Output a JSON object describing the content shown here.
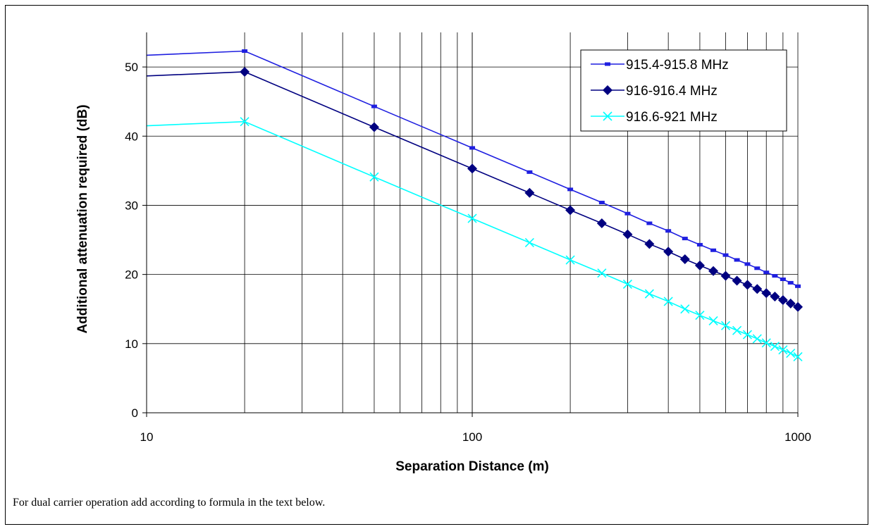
{
  "footnote": "For dual carrier operation add according to formula in the text below.",
  "chart_data": {
    "type": "line",
    "title": "",
    "xlabel": "Separation Distance (m)",
    "ylabel": "Additional attenuation required (dB)",
    "x_scale": "log",
    "xlim": [
      10,
      1000
    ],
    "ylim": [
      0,
      55
    ],
    "x_ticks": [
      10,
      100,
      1000
    ],
    "x_tick_labels": [
      "10",
      "100",
      "1000"
    ],
    "y_ticks": [
      0,
      10,
      20,
      30,
      40,
      50
    ],
    "y_tick_labels": [
      "0",
      "10",
      "20",
      "30",
      "40",
      "50"
    ],
    "grid": true,
    "legend_position": "top-right",
    "series": [
      {
        "name": "915.4-915.8 MHz",
        "color": "#1f1fe0",
        "marker": "dash",
        "x": [
          10,
          20,
          50,
          100,
          150,
          200,
          250,
          300,
          350,
          400,
          450,
          500,
          550,
          600,
          650,
          700,
          750,
          800,
          850,
          900,
          950,
          1000
        ],
        "y": [
          51.7,
          52.3,
          44.3,
          38.3,
          34.8,
          32.3,
          30.4,
          28.8,
          27.4,
          26.3,
          25.2,
          24.3,
          23.5,
          22.8,
          22.1,
          21.5,
          20.9,
          20.3,
          19.8,
          19.3,
          18.8,
          18.3
        ]
      },
      {
        "name": "916-916.4 MHz",
        "color": "#000080",
        "marker": "diamond",
        "x": [
          10,
          20,
          50,
          100,
          150,
          200,
          250,
          300,
          350,
          400,
          450,
          500,
          550,
          600,
          650,
          700,
          750,
          800,
          850,
          900,
          950,
          1000
        ],
        "y": [
          48.7,
          49.3,
          41.3,
          35.3,
          31.8,
          29.3,
          27.4,
          25.8,
          24.4,
          23.3,
          22.2,
          21.3,
          20.5,
          19.8,
          19.1,
          18.5,
          17.9,
          17.3,
          16.8,
          16.3,
          15.8,
          15.3
        ]
      },
      {
        "name": "916.6-921 MHz",
        "color": "#00ffff",
        "marker": "x",
        "x": [
          10,
          20,
          50,
          100,
          150,
          200,
          250,
          300,
          350,
          400,
          450,
          500,
          550,
          600,
          650,
          700,
          750,
          800,
          850,
          900,
          950,
          1000
        ],
        "y": [
          41.5,
          42.1,
          34.1,
          28.1,
          24.6,
          22.1,
          20.2,
          18.6,
          17.2,
          16.1,
          15.0,
          14.1,
          13.3,
          12.6,
          11.9,
          11.3,
          10.7,
          10.1,
          9.6,
          9.1,
          8.6,
          8.1
        ]
      }
    ]
  }
}
